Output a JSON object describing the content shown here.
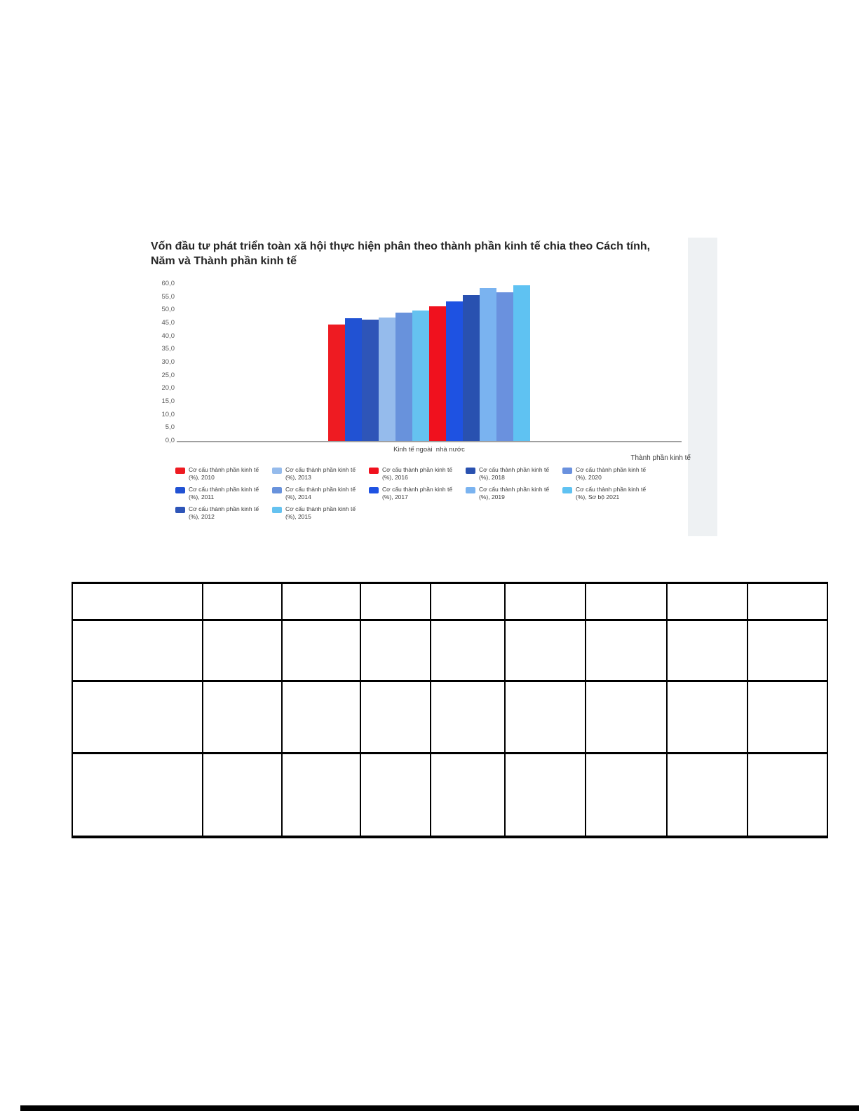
{
  "chart": {
    "title": "Vốn đầu tư phát triển toàn xã hội thực hiện phân theo thành phần kinh tế chia theo Cách tính, Năm và Thành phần kinh tế",
    "category_label": "Kinh tế ngoài  nhà nước",
    "axis_title": "Thành phần kinh tế",
    "y_ticks": [
      "60,0",
      "55,0",
      "50,0",
      "45,0",
      "40,0",
      "35,0",
      "30,0",
      "25,0",
      "20,0",
      "15,0",
      "10,0",
      "5,0",
      "0,0"
    ]
  },
  "chart_data": {
    "type": "bar",
    "title": "Vốn đầu tư phát triển toàn xã hội thực hiện phân theo thành phần kinh tế chia theo Cách tính, Năm và Thành phần kinh tế",
    "categories": [
      "Kinh tế ngoài nhà nước"
    ],
    "xlabel": "Thành phần kinh tế",
    "ylabel": "",
    "ylim": [
      0,
      60
    ],
    "y_tick_step": 5,
    "grid": false,
    "legend_position": "bottom",
    "legend_columns": [
      3,
      3,
      2,
      2,
      2
    ],
    "legend_label_line1": "Cơ cấu thành phần kinh tế",
    "series": [
      {
        "key": "2010",
        "name": "Cơ cấu thành phần kinh tế (%), 2010",
        "legend_line2": "(%), 2010",
        "color": "#ee1b22",
        "values": [
          44.5
        ]
      },
      {
        "key": "2011",
        "name": "Cơ cấu thành phần kinh tế (%), 2011",
        "legend_line2": "(%), 2011",
        "color": "#2152d3",
        "values": [
          46.8
        ]
      },
      {
        "key": "2012",
        "name": "Cơ cấu thành phần kinh tế (%), 2012",
        "legend_line2": "(%), 2012",
        "color": "#2e55b8",
        "values": [
          46.4
        ]
      },
      {
        "key": "2013",
        "name": "Cơ cấu thành phần kinh tế (%), 2013",
        "legend_line2": "(%), 2013",
        "color": "#95bbec",
        "values": [
          47.2
        ]
      },
      {
        "key": "2014",
        "name": "Cơ cấu thành phần kinh tế (%), 2014",
        "legend_line2": "(%), 2014",
        "color": "#6892dc",
        "values": [
          48.9
        ]
      },
      {
        "key": "2015",
        "name": "Cơ cấu thành phần kinh tế (%), 2015",
        "legend_line2": "(%), 2015",
        "color": "#65c2f0",
        "values": [
          49.9
        ]
      },
      {
        "key": "2016",
        "name": "Cơ cấu thành phần kinh tế (%), 2016",
        "legend_line2": "(%), 2016",
        "color": "#f0111e",
        "values": [
          51.4
        ]
      },
      {
        "key": "2017",
        "name": "Cơ cấu thành phần kinh tế (%), 2017",
        "legend_line2": "(%), 2017",
        "color": "#1e52e2",
        "values": [
          53.4
        ]
      },
      {
        "key": "2018",
        "name": "Cơ cấu thành phần kinh tế (%), 2018",
        "legend_line2": "(%), 2018",
        "color": "#2951b0",
        "values": [
          55.8
        ]
      },
      {
        "key": "2019",
        "name": "Cơ cấu thành phần kinh tế (%), 2019",
        "legend_line2": "(%), 2019",
        "color": "#7ab3f0",
        "values": [
          58.3
        ]
      },
      {
        "key": "2020",
        "name": "Cơ cấu thành phần kinh tế (%), 2020",
        "legend_line2": "(%), 2020",
        "color": "#6a91de",
        "values": [
          56.8
        ]
      },
      {
        "key": "2021sb",
        "name": "Cơ cấu thành phần kinh tế (%), Sơ bộ 2021",
        "legend_line2": "(%), Sơ bộ 2021",
        "color": "#5fc2f2",
        "values": [
          59.4
        ]
      }
    ]
  }
}
